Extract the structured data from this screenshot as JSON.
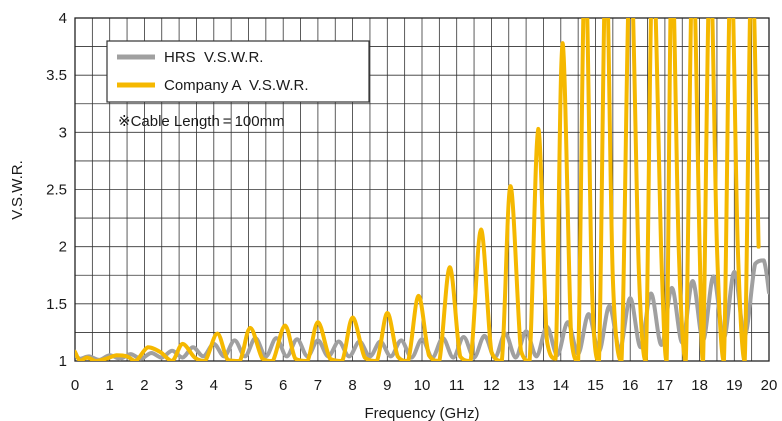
{
  "chart_data": {
    "type": "line",
    "title": "",
    "xlabel": "Frequency (GHz)",
    "ylabel": "V.S.W.R.",
    "xlim": [
      0,
      20
    ],
    "ylim": [
      1,
      4
    ],
    "x_ticks": [
      "0",
      "1",
      "2",
      "3",
      "4",
      "5",
      "6",
      "7",
      "8",
      "9",
      "10",
      "11",
      "12",
      "13",
      "14",
      "15",
      "16",
      "17",
      "18",
      "19",
      "20"
    ],
    "y_ticks": [
      "1",
      "1.5",
      "2",
      "2.5",
      "3",
      "3.5",
      "4"
    ],
    "x_tick_values": [
      0,
      1,
      2,
      3,
      4,
      5,
      6,
      7,
      8,
      9,
      10,
      11,
      12,
      13,
      14,
      15,
      16,
      17,
      18,
      19,
      20
    ],
    "y_tick_values": [
      1,
      1.5,
      2,
      2.5,
      3,
      3.5,
      4
    ],
    "grid": true,
    "legend_position": "top-left",
    "annotation": "※Cable Length = 100mm",
    "series": [
      {
        "name": "HRS  V.S.W.R.",
        "color": "#a0a0a0",
        "x": [
          0,
          0.15,
          0.4,
          0.7,
          1.0,
          1.3,
          1.6,
          1.9,
          2.2,
          2.5,
          2.8,
          3.1,
          3.4,
          3.7,
          4.0,
          4.3,
          4.6,
          4.9,
          5.2,
          5.5,
          5.8,
          6.1,
          6.4,
          6.7,
          7.0,
          7.3,
          7.6,
          7.9,
          8.2,
          8.5,
          8.8,
          9.1,
          9.4,
          9.7,
          10.0,
          10.3,
          10.6,
          10.9,
          11.2,
          11.5,
          11.8,
          12.1,
          12.4,
          12.7,
          13.0,
          13.3,
          13.6,
          13.9,
          14.2,
          14.5,
          14.8,
          15.1,
          15.4,
          15.7,
          16.0,
          16.3,
          16.6,
          16.9,
          17.2,
          17.5,
          17.8,
          18.1,
          18.4,
          18.7,
          19.0,
          19.3,
          19.6,
          19.85,
          20
        ],
        "y": [
          1.05,
          1.02,
          1.04,
          1.01,
          1.05,
          1.02,
          1.06,
          1.02,
          1.07,
          1.03,
          1.09,
          1.03,
          1.12,
          1.04,
          1.15,
          1.04,
          1.18,
          1.04,
          1.2,
          1.04,
          1.2,
          1.04,
          1.19,
          1.04,
          1.18,
          1.04,
          1.17,
          1.04,
          1.17,
          1.04,
          1.17,
          1.04,
          1.18,
          1.03,
          1.19,
          1.03,
          1.2,
          1.03,
          1.21,
          1.03,
          1.22,
          1.03,
          1.24,
          1.03,
          1.26,
          1.04,
          1.3,
          1.05,
          1.34,
          1.06,
          1.41,
          1.08,
          1.48,
          1.1,
          1.55,
          1.12,
          1.59,
          1.14,
          1.64,
          1.16,
          1.7,
          1.18,
          1.74,
          1.2,
          1.78,
          1.22,
          1.85,
          1.88,
          1.6
        ]
      },
      {
        "name": "Company A  V.S.W.R.",
        "color": "#f5b800",
        "x": [
          0,
          0.15,
          0.35,
          0.6,
          0.9,
          1.2,
          1.5,
          1.75,
          2.1,
          2.45,
          2.8,
          3.1,
          3.45,
          3.75,
          4.1,
          4.4,
          4.75,
          5.05,
          5.4,
          5.7,
          6.05,
          6.35,
          6.7,
          7.0,
          7.35,
          7.7,
          8.0,
          8.35,
          8.7,
          9.0,
          9.3,
          9.6,
          9.9,
          10.2,
          10.5,
          10.8,
          11.1,
          11.4,
          11.7,
          12.0,
          12.3,
          12.55,
          12.85,
          13.1,
          13.35,
          13.6,
          13.85,
          14.05,
          14.3,
          14.5,
          14.7,
          14.9,
          15.1,
          15.3,
          15.5,
          15.75,
          16.0,
          16.25,
          16.45,
          16.65,
          16.9,
          17.05,
          17.2,
          17.4,
          17.6,
          17.8,
          18.0,
          18.1,
          18.3,
          18.5,
          18.7,
          18.9,
          19.1,
          19.3,
          19.5,
          19.7
        ],
        "y": [
          1.08,
          1.0,
          1.03,
          1.0,
          1.02,
          1.05,
          1.04,
          1.0,
          1.12,
          1.08,
          1.0,
          1.15,
          1.03,
          1.0,
          1.24,
          1.01,
          1.0,
          1.29,
          1.02,
          1.0,
          1.31,
          1.02,
          1.0,
          1.34,
          1.02,
          1.0,
          1.38,
          1.03,
          1.0,
          1.42,
          1.04,
          1.0,
          1.57,
          1.05,
          1.0,
          1.82,
          1.04,
          1.0,
          2.15,
          1.08,
          1.0,
          2.53,
          1.09,
          1.0,
          3.03,
          1.18,
          1.02,
          3.78,
          1.2,
          1.0,
          4.6,
          1.62,
          1.0,
          4.6,
          1.72,
          1.0,
          4.6,
          1.78,
          1.0,
          4.6,
          1.9,
          1.0,
          4.6,
          1.97,
          1.0,
          4.6,
          2.0,
          1.0,
          4.6,
          2.0,
          1.0,
          4.6,
          2.0,
          1.0,
          4.6,
          2.0
        ]
      }
    ]
  }
}
